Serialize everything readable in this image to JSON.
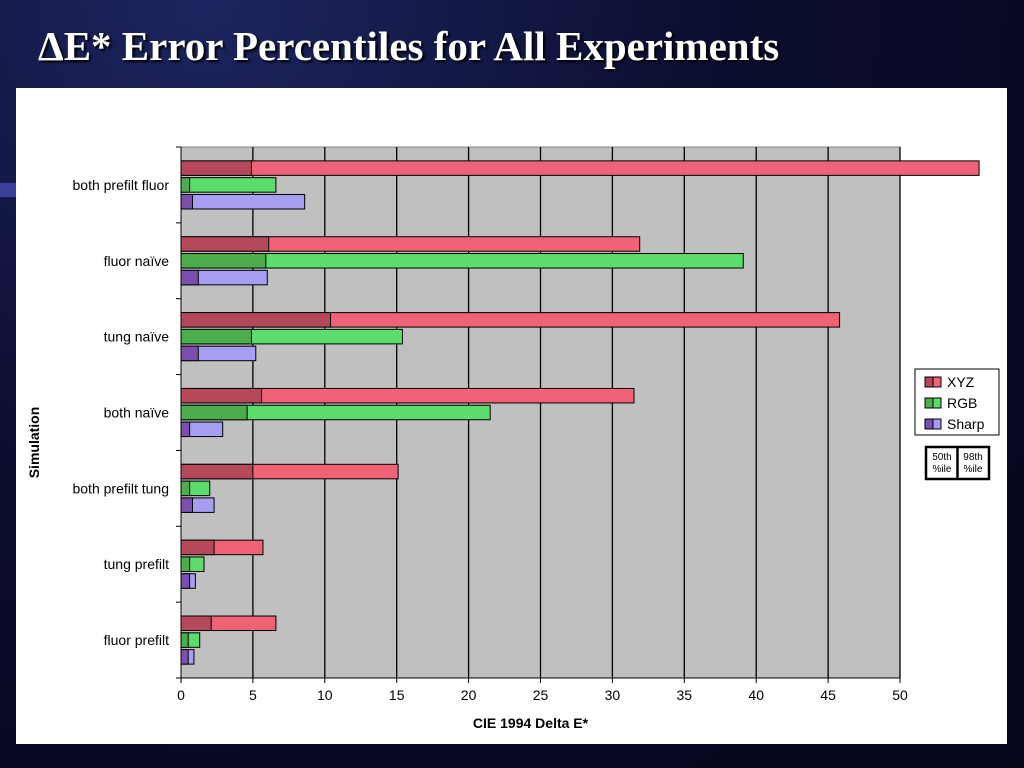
{
  "slide": {
    "title": "ΔE* Error Percentiles for All Experiments"
  },
  "colors": {
    "xyz_50": "#b5495b",
    "xyz_98": "#f06275",
    "rgb_50": "#4cad4c",
    "rgb_98": "#5cdc6c",
    "sharp_50": "#7a4fae",
    "sharp_98": "#a59ef2",
    "plot_bg": "#c0c0c0"
  },
  "chart_data": {
    "type": "bar",
    "orientation": "horizontal",
    "stacked_overlay": true,
    "title": "",
    "xlabel": "CIE 1994 Delta E*",
    "ylabel": "Simulation",
    "xlim": [
      0,
      50
    ],
    "xticks": [
      0,
      5,
      10,
      15,
      20,
      25,
      30,
      35,
      40,
      45,
      50
    ],
    "grid": true,
    "legend_position": "right",
    "categories": [
      "both prefilt fluor",
      "fluor naïve",
      "tung naïve",
      "both naïve",
      "both prefilt tung",
      "tung prefilt",
      "fluor prefilt"
    ],
    "series": [
      {
        "name": "XYZ",
        "p50": [
          4.9,
          6.1,
          10.4,
          5.6,
          5.0,
          2.3,
          2.1
        ],
        "p98": [
          55.5,
          31.9,
          45.8,
          31.5,
          15.1,
          5.7,
          6.6
        ]
      },
      {
        "name": "RGB",
        "p50": [
          0.6,
          5.9,
          4.9,
          4.6,
          0.6,
          0.6,
          0.5
        ],
        "p98": [
          6.6,
          39.1,
          15.4,
          21.5,
          2.0,
          1.6,
          1.3
        ]
      },
      {
        "name": "Sharp",
        "p50": [
          0.8,
          1.2,
          1.2,
          0.6,
          0.8,
          0.6,
          0.5
        ],
        "p98": [
          8.6,
          6.0,
          5.2,
          2.9,
          2.3,
          1.0,
          0.9
        ]
      }
    ],
    "percentile_legend": [
      "50th %ile",
      "98th %ile"
    ]
  }
}
